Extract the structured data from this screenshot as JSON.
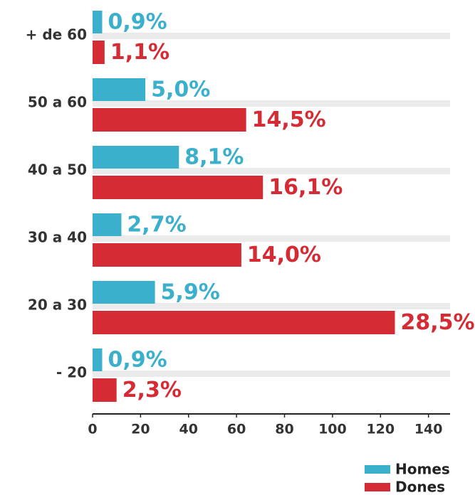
{
  "chart_data": {
    "type": "hbar",
    "categories": [
      "+ de 60",
      "50 a 60",
      "40 a 50",
      "30 a 40",
      "20 a 30",
      "- 20"
    ],
    "series": [
      {
        "name": "Homes",
        "color": "#3ab0cc",
        "values": [
          4,
          22,
          36,
          12,
          26,
          4
        ],
        "labels": [
          "0,9%",
          "5,0%",
          "8,1%",
          "2,7%",
          "5,9%",
          "0,9%"
        ]
      },
      {
        "name": "Dones",
        "color": "#d42b34",
        "values": [
          5,
          64,
          71,
          62,
          126,
          10
        ],
        "labels": [
          "1,1%",
          "14,5%",
          "16,1%",
          "14,0%",
          "28,5%",
          "2,3%"
        ]
      }
    ],
    "xlim": [
      0,
      149
    ],
    "xticks": [
      0,
      20,
      40,
      60,
      80,
      100,
      120,
      140
    ]
  }
}
